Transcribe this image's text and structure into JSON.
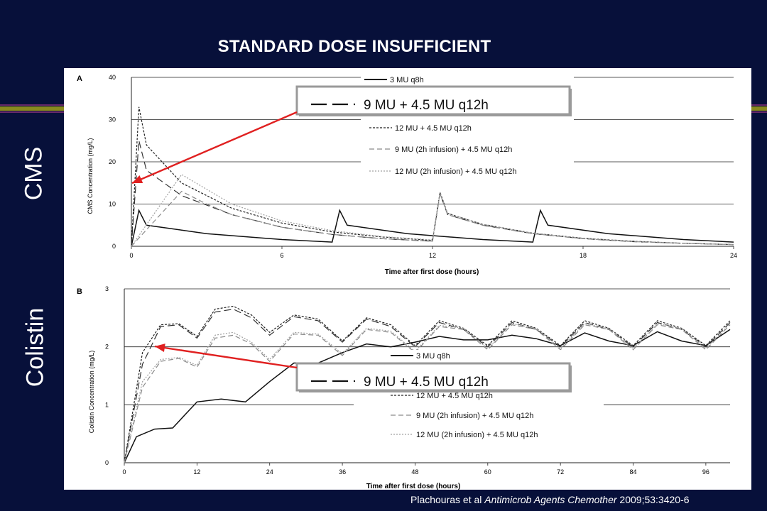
{
  "slide": {
    "title": "STANDARD DOSE INSUFFICIENT",
    "side_labels": [
      "CMS",
      "Colistin"
    ],
    "highlight_label": "9 MU + 4.5 MU q12h",
    "citation": {
      "authors": "Plachouras et al",
      "journal": "Antimicrob Agents Chemother",
      "details": "2009;53:3420-6"
    },
    "colors": {
      "background": "#07103a",
      "stripe_olive": "#8a8a1e",
      "stripe_purple": "#6a2a6a",
      "arrow": "#e02020"
    }
  },
  "chart_data": [
    {
      "type": "line",
      "panel": "A",
      "title": "",
      "xlabel": "Time after first dose (hours)",
      "ylabel": "CMS Concentration (mg/L)",
      "xlim": [
        0,
        24
      ],
      "ylim": [
        0,
        40
      ],
      "xticks": [
        0,
        6,
        12,
        18,
        24
      ],
      "yticks": [
        0,
        10,
        20,
        30,
        40
      ],
      "grid": "horizontal",
      "legend_placement": "top-right",
      "series": [
        {
          "name": "3 MU q8h",
          "style": "solid",
          "color": "#111111",
          "x": [
            0,
            0.3,
            0.6,
            3,
            6,
            8,
            8.3,
            8.6,
            11,
            14,
            16,
            16.3,
            16.6,
            19,
            22,
            24
          ],
          "y": [
            0,
            8.5,
            5,
            3,
            1.6,
            1,
            8.5,
            5,
            3,
            1.6,
            1,
            8.5,
            5,
            3,
            1.6,
            1
          ]
        },
        {
          "name": "9 MU + 4.5 MU q12h",
          "style": "long-dash",
          "color": "#333333",
          "x": [
            0,
            0.3,
            0.6,
            2,
            4,
            6,
            8,
            10,
            12,
            12.3,
            12.6,
            14,
            16,
            18,
            20,
            22,
            24
          ],
          "y": [
            0,
            25,
            18,
            12,
            7.5,
            4.5,
            2.8,
            1.8,
            1.2,
            12.5,
            7.5,
            5,
            3,
            1.8,
            1.1,
            0.7,
            0.4
          ]
        },
        {
          "name": "12 MU + 4.5 MU q12h",
          "style": "short-dash",
          "color": "#222222",
          "x": [
            0,
            0.3,
            0.6,
            2,
            4,
            6,
            8,
            10,
            12,
            12.3,
            12.6,
            14,
            16,
            18,
            20,
            22,
            24
          ],
          "y": [
            0,
            33,
            24,
            15,
            9,
            5.5,
            3.4,
            2.2,
            1.4,
            12.8,
            7.8,
            5.2,
            3.1,
            1.9,
            1.2,
            0.7,
            0.4
          ]
        },
        {
          "name": "9 MU (2h infusion) + 4.5 MU q12h",
          "style": "dash-gray",
          "color": "#8a8a8a",
          "x": [
            0,
            2,
            3,
            4,
            6,
            8,
            10,
            12,
            12.3,
            12.6,
            14,
            16,
            18,
            20,
            22,
            24
          ],
          "y": [
            0,
            13,
            10,
            7.5,
            4.5,
            2.8,
            1.8,
            1.2,
            12.5,
            7.5,
            5,
            3,
            1.8,
            1.1,
            0.7,
            0.4
          ]
        },
        {
          "name": "12 MU (2h infusion) + 4.5 MU q12h",
          "style": "dot-gray",
          "color": "#a0a0a0",
          "x": [
            0,
            2,
            3,
            4,
            6,
            8,
            10,
            12,
            12.3,
            12.6,
            14,
            16,
            18,
            20,
            22,
            24
          ],
          "y": [
            0,
            17,
            13.5,
            10,
            6,
            3.7,
            2.3,
            1.5,
            12.8,
            7.8,
            5.2,
            3.1,
            1.9,
            1.2,
            0.7,
            0.4
          ]
        }
      ]
    },
    {
      "type": "line",
      "panel": "B",
      "title": "",
      "xlabel": "Time after first dose (hours)",
      "ylabel": "Colistin Concentration (mg/L)",
      "xlim": [
        0,
        100
      ],
      "ylim": [
        0,
        3
      ],
      "xticks": [
        0,
        12,
        24,
        36,
        48,
        60,
        72,
        84,
        96
      ],
      "yticks": [
        0,
        1,
        2,
        3
      ],
      "grid": "horizontal",
      "legend_placement": "center-right",
      "series": [
        {
          "name": "3 MU q8h",
          "style": "solid",
          "color": "#111111",
          "x": [
            0,
            2,
            5,
            8,
            12,
            16,
            20,
            24,
            28,
            32,
            36,
            40,
            44,
            48,
            52,
            56,
            60,
            64,
            68,
            72,
            76,
            80,
            84,
            88,
            92,
            96,
            100
          ],
          "y": [
            0,
            0.45,
            0.58,
            0.6,
            1.05,
            1.1,
            1.05,
            1.4,
            1.72,
            1.72,
            1.9,
            2.05,
            2.0,
            2.08,
            2.18,
            2.12,
            2.12,
            2.2,
            2.14,
            2.02,
            2.24,
            2.1,
            2.02,
            2.26,
            2.1,
            2.02,
            2.3
          ]
        },
        {
          "name": "9 MU + 4.5 MU q12h",
          "style": "long-dash",
          "color": "#333333",
          "x": [
            0,
            3,
            6,
            9,
            12,
            15,
            18,
            21,
            24,
            28,
            32,
            36,
            40,
            44,
            48,
            52,
            56,
            60,
            64,
            68,
            72,
            76,
            80,
            84,
            88,
            92,
            96,
            100
          ],
          "y": [
            0,
            1.7,
            2.35,
            2.38,
            2.15,
            2.6,
            2.65,
            2.5,
            2.2,
            2.52,
            2.45,
            2.08,
            2.48,
            2.35,
            2.0,
            2.42,
            2.3,
            2.0,
            2.42,
            2.3,
            2.0,
            2.42,
            2.3,
            2.0,
            2.42,
            2.3,
            2.0,
            2.42
          ]
        },
        {
          "name": "12 MU + 4.5 MU q12h",
          "style": "short-dash",
          "color": "#222222",
          "x": [
            0,
            3,
            6,
            9,
            12,
            15,
            18,
            21,
            24,
            28,
            32,
            36,
            40,
            44,
            48,
            52,
            56,
            60,
            64,
            68,
            72,
            76,
            80,
            84,
            88,
            92,
            96,
            100
          ],
          "y": [
            0,
            1.9,
            2.38,
            2.4,
            2.18,
            2.65,
            2.7,
            2.55,
            2.25,
            2.55,
            2.48,
            2.1,
            2.5,
            2.38,
            2.02,
            2.45,
            2.32,
            2.02,
            2.45,
            2.32,
            2.02,
            2.45,
            2.32,
            2.02,
            2.45,
            2.32,
            2.02,
            2.45
          ]
        },
        {
          "name": "9 MU (2h infusion) + 4.5 MU q12h",
          "style": "dash-gray",
          "color": "#8a8a8a",
          "x": [
            0,
            3,
            6,
            9,
            12,
            15,
            18,
            21,
            24,
            28,
            32,
            36,
            40,
            44,
            48,
            52,
            56,
            60,
            64,
            68,
            72,
            76,
            80,
            84,
            88,
            92,
            96,
            100
          ],
          "y": [
            0,
            1.3,
            1.75,
            1.8,
            1.65,
            2.15,
            2.2,
            2.05,
            1.75,
            2.22,
            2.2,
            1.85,
            2.3,
            2.25,
            1.9,
            2.35,
            2.3,
            1.95,
            2.38,
            2.3,
            1.95,
            2.38,
            2.3,
            1.95,
            2.38,
            2.3,
            1.95,
            2.38
          ]
        },
        {
          "name": "12 MU (2h infusion) + 4.5 MU q12h",
          "style": "dot-gray",
          "color": "#a0a0a0",
          "x": [
            0,
            3,
            6,
            9,
            12,
            15,
            18,
            21,
            24,
            28,
            32,
            36,
            40,
            44,
            48,
            52,
            56,
            60,
            64,
            68,
            72,
            76,
            80,
            84,
            88,
            92,
            96,
            100
          ],
          "y": [
            0,
            1.4,
            1.78,
            1.82,
            1.68,
            2.2,
            2.25,
            2.08,
            1.78,
            2.25,
            2.22,
            1.88,
            2.32,
            2.27,
            1.92,
            2.37,
            2.32,
            1.97,
            2.4,
            2.32,
            1.97,
            2.4,
            2.32,
            1.97,
            2.4,
            2.32,
            1.97,
            2.4
          ]
        }
      ]
    }
  ]
}
